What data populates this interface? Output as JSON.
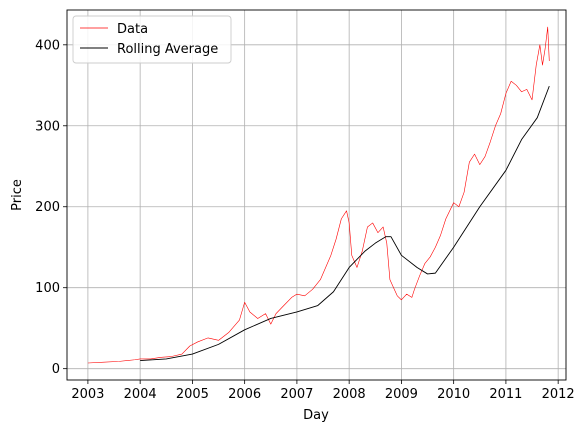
{
  "chart_data": {
    "type": "line",
    "title": "",
    "xlabel": "Day",
    "ylabel": "Price",
    "xlim": [
      2002.6,
      2012.15
    ],
    "ylim": [
      -14,
      443
    ],
    "grid": true,
    "legend_position": "top-left",
    "x_ticks": [
      2003,
      2004,
      2005,
      2006,
      2007,
      2008,
      2009,
      2010,
      2011,
      2012
    ],
    "y_ticks": [
      0,
      100,
      200,
      300,
      400
    ],
    "x_tick_labels": [
      "2003",
      "2004",
      "2005",
      "2006",
      "2007",
      "2008",
      "2009",
      "2010",
      "2011",
      "2012"
    ],
    "y_tick_labels": [
      "0",
      "100",
      "200",
      "300",
      "400"
    ],
    "series": [
      {
        "name": "Data",
        "color": "#ff0000",
        "points": [
          [
            2003.0,
            7
          ],
          [
            2003.3,
            8
          ],
          [
            2003.6,
            9
          ],
          [
            2003.9,
            11
          ],
          [
            2004.0,
            12
          ],
          [
            2004.2,
            12
          ],
          [
            2004.4,
            14
          ],
          [
            2004.6,
            15
          ],
          [
            2004.8,
            18
          ],
          [
            2004.95,
            28
          ],
          [
            2005.1,
            33
          ],
          [
            2005.3,
            38
          ],
          [
            2005.5,
            35
          ],
          [
            2005.7,
            45
          ],
          [
            2005.9,
            60
          ],
          [
            2006.0,
            82
          ],
          [
            2006.1,
            70
          ],
          [
            2006.25,
            62
          ],
          [
            2006.4,
            68
          ],
          [
            2006.5,
            55
          ],
          [
            2006.6,
            68
          ],
          [
            2006.75,
            78
          ],
          [
            2006.9,
            88
          ],
          [
            2007.0,
            92
          ],
          [
            2007.15,
            90
          ],
          [
            2007.3,
            98
          ],
          [
            2007.45,
            110
          ],
          [
            2007.55,
            125
          ],
          [
            2007.65,
            140
          ],
          [
            2007.75,
            160
          ],
          [
            2007.85,
            185
          ],
          [
            2007.95,
            195
          ],
          [
            2008.0,
            180
          ],
          [
            2008.05,
            140
          ],
          [
            2008.15,
            125
          ],
          [
            2008.25,
            145
          ],
          [
            2008.35,
            175
          ],
          [
            2008.45,
            180
          ],
          [
            2008.55,
            168
          ],
          [
            2008.65,
            175
          ],
          [
            2008.72,
            155
          ],
          [
            2008.78,
            110
          ],
          [
            2008.85,
            100
          ],
          [
            2008.92,
            90
          ],
          [
            2009.0,
            85
          ],
          [
            2009.1,
            92
          ],
          [
            2009.2,
            88
          ],
          [
            2009.25,
            98
          ],
          [
            2009.35,
            115
          ],
          [
            2009.45,
            130
          ],
          [
            2009.55,
            138
          ],
          [
            2009.65,
            150
          ],
          [
            2009.75,
            165
          ],
          [
            2009.85,
            185
          ],
          [
            2010.0,
            205
          ],
          [
            2010.1,
            200
          ],
          [
            2010.2,
            218
          ],
          [
            2010.3,
            255
          ],
          [
            2010.4,
            265
          ],
          [
            2010.5,
            252
          ],
          [
            2010.6,
            262
          ],
          [
            2010.7,
            280
          ],
          [
            2010.8,
            300
          ],
          [
            2010.9,
            315
          ],
          [
            2011.0,
            340
          ],
          [
            2011.1,
            355
          ],
          [
            2011.2,
            350
          ],
          [
            2011.3,
            342
          ],
          [
            2011.4,
            345
          ],
          [
            2011.5,
            332
          ],
          [
            2011.58,
            375
          ],
          [
            2011.65,
            400
          ],
          [
            2011.7,
            375
          ],
          [
            2011.75,
            395
          ],
          [
            2011.8,
            422
          ],
          [
            2011.83,
            380
          ]
        ]
      },
      {
        "name": "Rolling Average",
        "color": "#000000",
        "points": [
          [
            2004.0,
            10
          ],
          [
            2004.5,
            12
          ],
          [
            2005.0,
            18
          ],
          [
            2005.5,
            30
          ],
          [
            2006.0,
            48
          ],
          [
            2006.5,
            62
          ],
          [
            2007.0,
            70
          ],
          [
            2007.4,
            78
          ],
          [
            2007.7,
            95
          ],
          [
            2008.0,
            125
          ],
          [
            2008.3,
            145
          ],
          [
            2008.5,
            155
          ],
          [
            2008.7,
            163
          ],
          [
            2008.8,
            163
          ],
          [
            2009.0,
            140
          ],
          [
            2009.3,
            125
          ],
          [
            2009.5,
            117
          ],
          [
            2009.65,
            118
          ],
          [
            2010.0,
            150
          ],
          [
            2010.5,
            200
          ],
          [
            2011.0,
            245
          ],
          [
            2011.3,
            283
          ],
          [
            2011.6,
            310
          ],
          [
            2011.83,
            349
          ]
        ]
      }
    ]
  }
}
